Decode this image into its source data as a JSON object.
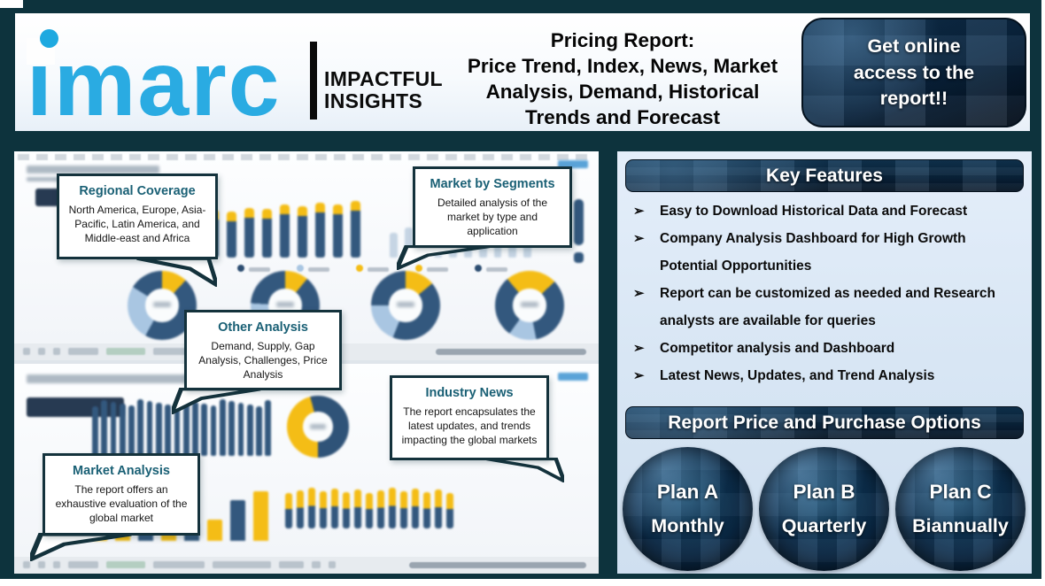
{
  "header": {
    "brand": "imarc",
    "brand_tagline": [
      "IMPACTFUL",
      "INSIGHTS"
    ],
    "title_lines": [
      "Pricing Report:",
      "Price Trend, Index, News, Market",
      "Analysis, Demand, Historical",
      "Trends and Forecast"
    ],
    "cta_lines": [
      "Get online",
      "access to the",
      "report!!"
    ]
  },
  "dashboard_callouts": [
    {
      "title": "Regional Coverage",
      "body": "North America, Europe, Asia-Pacific, Latin America, and Middle-east and Africa"
    },
    {
      "title": "Market by Segments",
      "body": "Detailed analysis of the market by type and application"
    },
    {
      "title": "Other Analysis",
      "body": "Demand, Supply, Gap Analysis, Challenges, Price Analysis"
    },
    {
      "title": "Industry News",
      "body": "The report encapsulates the latest updates, and trends impacting the global markets"
    },
    {
      "title": "Market Analysis",
      "body": "The report offers an exhaustive evaluation of the global market"
    }
  ],
  "key_features": {
    "heading": "Key Features",
    "bullet_icon": "➢",
    "items": [
      "Easy to Download Historical Data and Forecast",
      "Company Analysis Dashboard for High Growth Potential Opportunities",
      "Report can be customized as needed and Research analysts are available for queries",
      "Competitor analysis and Dashboard",
      "Latest News, Updates, and Trend Analysis"
    ]
  },
  "purchase": {
    "heading": "Report Price and Purchase Options",
    "plans": [
      {
        "name": "Plan A",
        "period": "Monthly"
      },
      {
        "name": "Plan B",
        "period": "Quarterly"
      },
      {
        "name": "Plan C",
        "period": "Biannually"
      }
    ]
  },
  "colors": {
    "brand_blue": "#29abe2",
    "frame_teal": "#0d333d",
    "panel_navy": "#0a2742",
    "chart_navy": "#33587e",
    "chart_yellow": "#f4bd16",
    "chart_lightblue": "#a9c6e2",
    "callout_title": "#1a6075",
    "right_panel_bg": "#d9e6f4"
  }
}
